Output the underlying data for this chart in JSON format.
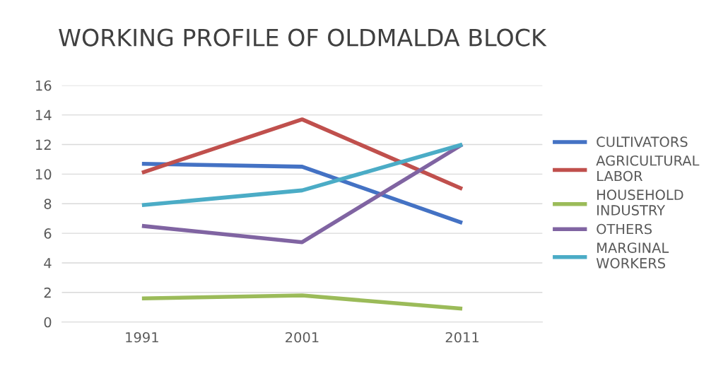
{
  "chart_data": {
    "type": "line",
    "title": "WORKING PROFILE OF OLDMALDA BLOCK",
    "categories": [
      "1991",
      "2001",
      "2011"
    ],
    "series": [
      {
        "name": "CULTIVATORS",
        "color": "#4472c4",
        "values": [
          10.7,
          10.5,
          6.7
        ]
      },
      {
        "name": "AGRICULTURAL LABOR",
        "color": "#c0504d",
        "values": [
          10.1,
          13.7,
          9.0
        ]
      },
      {
        "name": "HOUSEHOLD INDUSTRY",
        "color": "#9bbb59",
        "values": [
          1.6,
          1.8,
          0.9
        ]
      },
      {
        "name": "OTHERS",
        "color": "#8064a2",
        "values": [
          6.5,
          5.4,
          12.0
        ]
      },
      {
        "name": "MARGINAL WORKERS",
        "color": "#4bacc6",
        "values": [
          7.9,
          8.9,
          12.0
        ]
      }
    ],
    "ylim": [
      0,
      16
    ],
    "yticks": [
      0,
      2,
      4,
      6,
      8,
      10,
      12,
      14,
      16
    ],
    "grid": "y",
    "legend": "right",
    "marker": "none",
    "line_style": "solid"
  }
}
